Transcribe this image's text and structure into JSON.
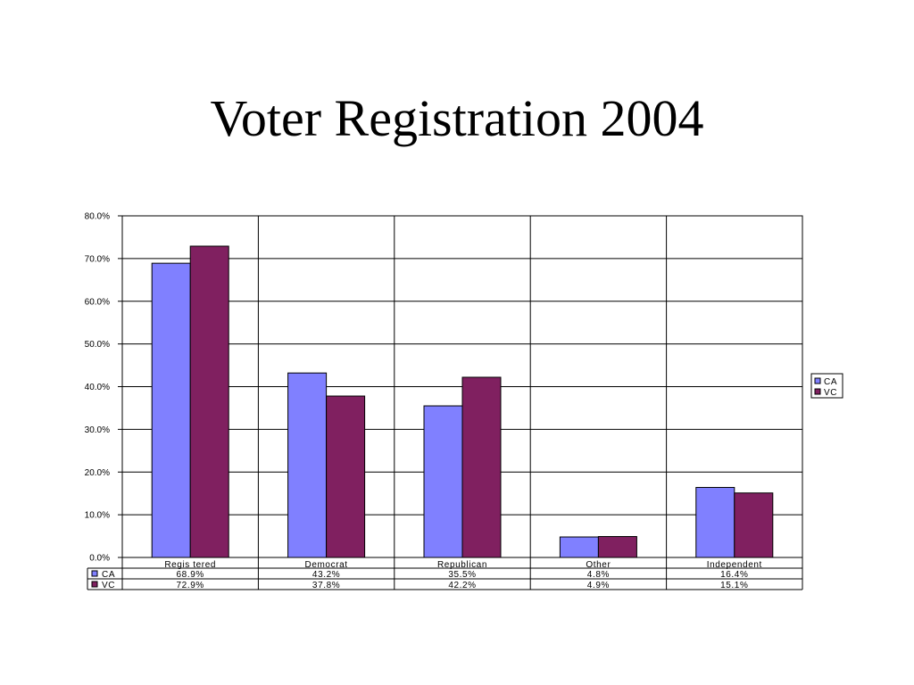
{
  "slide": {
    "title": "Voter Registration 2004"
  },
  "chart_data": {
    "type": "bar",
    "title": "Voter Registration 2004",
    "xlabel": "",
    "ylabel": "",
    "ylim": [
      0,
      80
    ],
    "yticks": [
      0,
      10,
      20,
      30,
      40,
      50,
      60,
      70,
      80
    ],
    "ytick_labels": [
      "0.0%",
      "10.0%",
      "20.0%",
      "30.0%",
      "40.0%",
      "50.0%",
      "60.0%",
      "70.0%",
      "80.0%"
    ],
    "grid": true,
    "legend_position": "right",
    "categories": [
      "Regis tered",
      "Democrat",
      "Republican",
      "Other",
      "Independent"
    ],
    "series": [
      {
        "name": "CA",
        "color": "#8080FF",
        "values": [
          68.9,
          43.2,
          35.5,
          4.8,
          16.4
        ],
        "labels": [
          "68.9%",
          "43.2%",
          "35.5%",
          "4.8%",
          "16.4%"
        ]
      },
      {
        "name": "VC",
        "color": "#802060",
        "values": [
          72.9,
          37.8,
          42.2,
          4.9,
          15.1
        ],
        "labels": [
          "72.9%",
          "37.8%",
          "42.2%",
          "4.9%",
          "15.1%"
        ]
      }
    ]
  }
}
